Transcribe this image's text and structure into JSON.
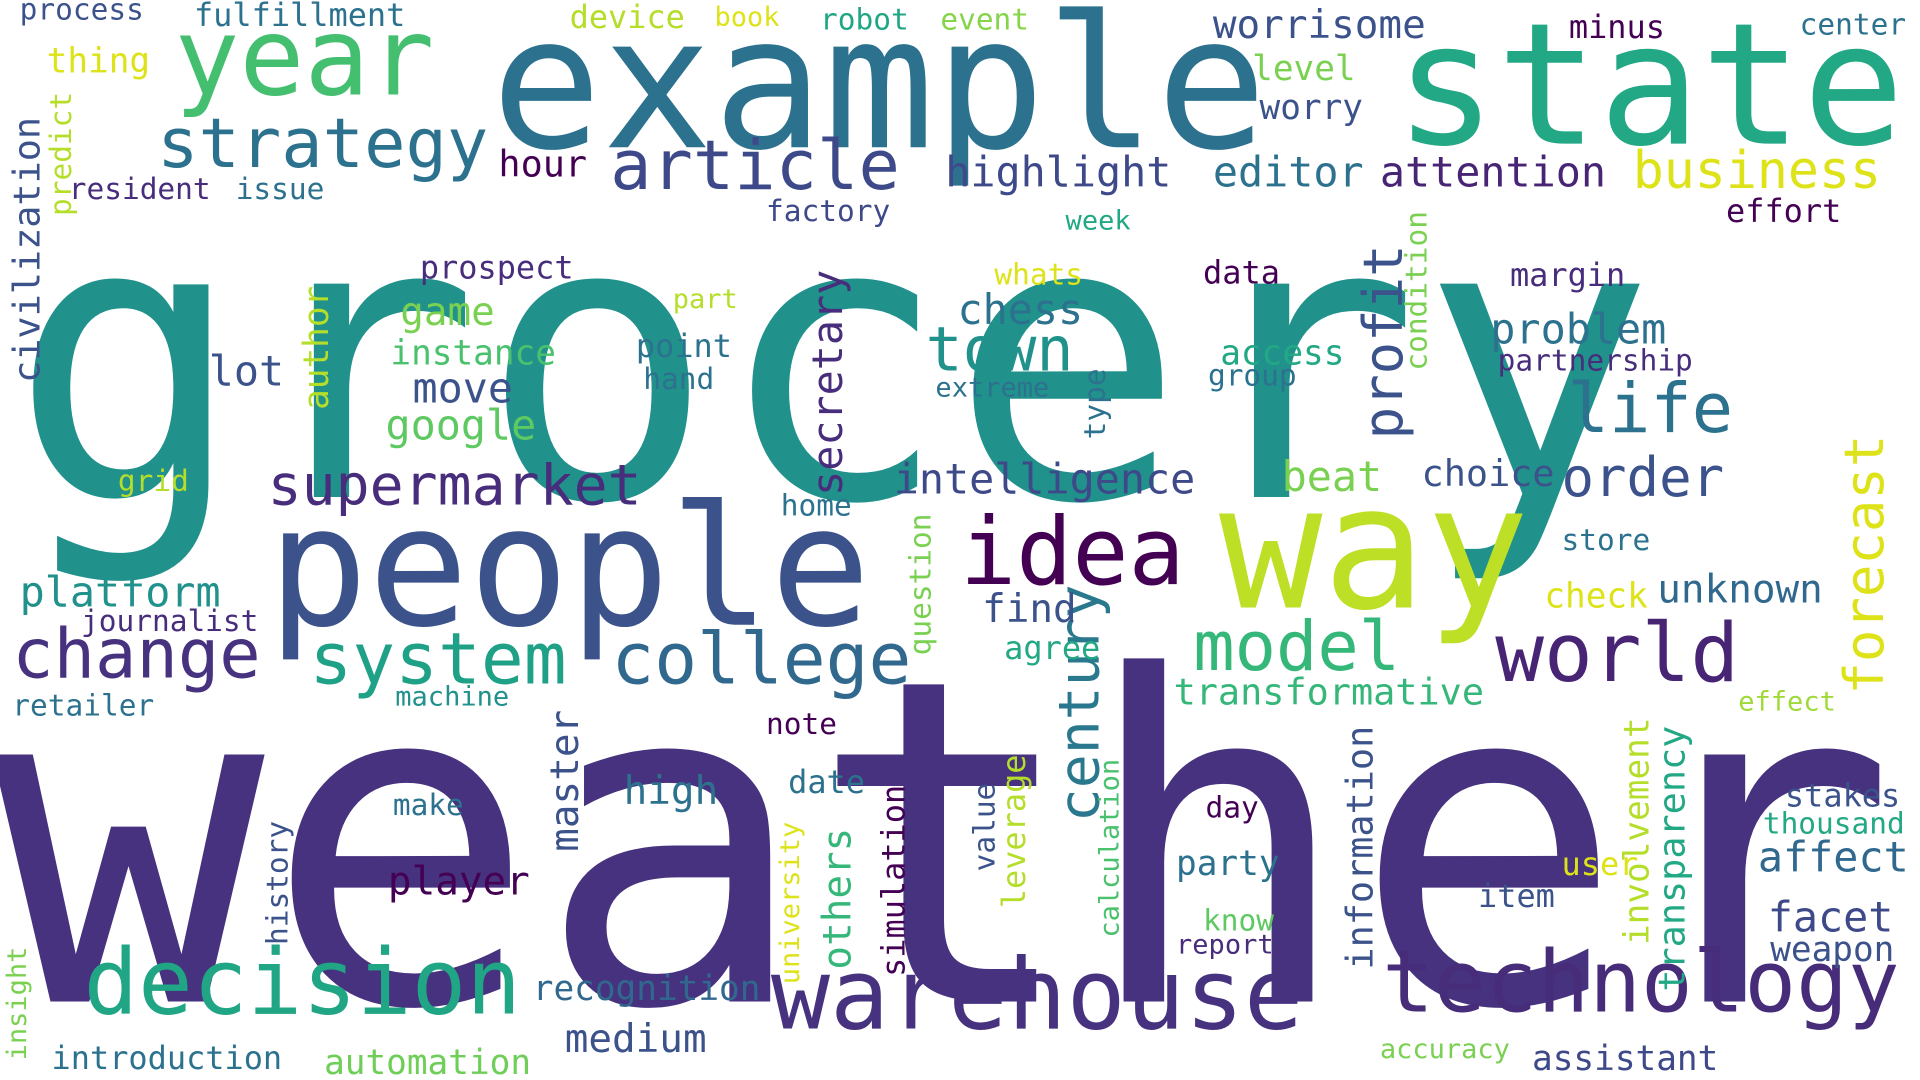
{
  "words": [
    {
      "text": "grocery",
      "color": "#21918c"
    },
    {
      "text": "weather",
      "color": "#46327e"
    },
    {
      "text": "example",
      "color": "#2c728e"
    },
    {
      "text": "state",
      "color": "#22a884"
    },
    {
      "text": "people",
      "color": "#3b528b"
    },
    {
      "text": "way",
      "color": "#bddf26"
    },
    {
      "text": "year",
      "color": "#44bf70"
    },
    {
      "text": "warehouse",
      "color": "#46327e"
    },
    {
      "text": "technology",
      "color": "#472c7a"
    },
    {
      "text": "decision",
      "color": "#21a685"
    },
    {
      "text": "idea",
      "color": "#440154"
    },
    {
      "text": "world",
      "color": "#482475"
    },
    {
      "text": "college",
      "color": "#31688e"
    },
    {
      "text": "change",
      "color": "#46327e"
    },
    {
      "text": "system",
      "color": "#1fa187"
    },
    {
      "text": "model",
      "color": "#35b779"
    },
    {
      "text": "strategy",
      "color": "#2c728e"
    },
    {
      "text": "article",
      "color": "#3e4989"
    },
    {
      "text": "business",
      "color": "#dde318"
    },
    {
      "text": "life",
      "color": "#2c728e"
    },
    {
      "text": "supermarket",
      "color": "#472d7b"
    },
    {
      "text": "town",
      "color": "#21918c"
    },
    {
      "text": "order",
      "color": "#3b528b"
    },
    {
      "text": "century",
      "color": "#2a788e"
    },
    {
      "text": "profit",
      "color": "#3b528b"
    },
    {
      "text": "forecast",
      "color": "#dde318"
    },
    {
      "text": "intelligence",
      "color": "#3e4989"
    },
    {
      "text": "highlight",
      "color": "#3e4989"
    },
    {
      "text": "attention",
      "color": "#482475"
    },
    {
      "text": "editor",
      "color": "#2c728e"
    },
    {
      "text": "worrisome",
      "color": "#3b528b"
    },
    {
      "text": "platform",
      "color": "#21918c"
    },
    {
      "text": "secretary",
      "color": "#472d7b"
    },
    {
      "text": "problem",
      "color": "#2c728e"
    },
    {
      "text": "chess",
      "color": "#2c728e"
    },
    {
      "text": "google",
      "color": "#5ec962"
    },
    {
      "text": "game",
      "color": "#7ad151"
    },
    {
      "text": "instance",
      "color": "#4ac16d"
    },
    {
      "text": "move",
      "color": "#3b528b"
    },
    {
      "text": "lot",
      "color": "#3b528b"
    },
    {
      "text": "author",
      "color": "#b5de2b"
    },
    {
      "text": "hour",
      "color": "#440154"
    },
    {
      "text": "find",
      "color": "#3b528b"
    },
    {
      "text": "player",
      "color": "#440154"
    },
    {
      "text": "master",
      "color": "#3b528b"
    },
    {
      "text": "others",
      "color": "#35b779"
    },
    {
      "text": "high",
      "color": "#2c728e"
    },
    {
      "text": "medium",
      "color": "#3b528b"
    },
    {
      "text": "recognition",
      "color": "#31688e"
    },
    {
      "text": "automation",
      "color": "#6ece58"
    },
    {
      "text": "introduction",
      "color": "#2c728e"
    },
    {
      "text": "transformative",
      "color": "#35b779"
    },
    {
      "text": "information",
      "color": "#3b528b"
    },
    {
      "text": "involvement",
      "color": "#b5de2b"
    },
    {
      "text": "transparency",
      "color": "#22a884"
    },
    {
      "text": "affect",
      "color": "#31688e"
    },
    {
      "text": "facet",
      "color": "#3e4989"
    },
    {
      "text": "weapon",
      "color": "#3b528b"
    },
    {
      "text": "assistant",
      "color": "#3e4989"
    },
    {
      "text": "accuracy",
      "color": "#7ad151"
    },
    {
      "text": "beat",
      "color": "#7ad151"
    },
    {
      "text": "choice",
      "color": "#3b528b"
    },
    {
      "text": "unknown",
      "color": "#31688e"
    },
    {
      "text": "check",
      "color": "#dde318"
    },
    {
      "text": "store",
      "color": "#2c728e"
    },
    {
      "text": "stakes",
      "color": "#3b528b"
    },
    {
      "text": "thousand",
      "color": "#22a884"
    },
    {
      "text": "effect",
      "color": "#a0da39"
    },
    {
      "text": "civilization",
      "color": "#3b528b"
    },
    {
      "text": "resident",
      "color": "#472d7b"
    },
    {
      "text": "issue",
      "color": "#2c728e"
    },
    {
      "text": "predict",
      "color": "#b5de2b"
    },
    {
      "text": "thing",
      "color": "#dde318"
    },
    {
      "text": "process",
      "color": "#3b528b"
    },
    {
      "text": "fulfillment",
      "color": "#2c728e"
    },
    {
      "text": "device",
      "color": "#b5de2b"
    },
    {
      "text": "book",
      "color": "#dde318"
    },
    {
      "text": "robot",
      "color": "#21a685"
    },
    {
      "text": "event",
      "color": "#86d549"
    },
    {
      "text": "minus",
      "color": "#440154"
    },
    {
      "text": "center",
      "color": "#2c728e"
    },
    {
      "text": "level",
      "color": "#7ad151"
    },
    {
      "text": "worry",
      "color": "#3b528b"
    },
    {
      "text": "factory",
      "color": "#3e4989"
    },
    {
      "text": "week",
      "color": "#22a884"
    },
    {
      "text": "effort",
      "color": "#440154"
    },
    {
      "text": "prospect",
      "color": "#472d7b"
    },
    {
      "text": "part",
      "color": "#b5de2b"
    },
    {
      "text": "whats",
      "color": "#dde318"
    },
    {
      "text": "data",
      "color": "#440154"
    },
    {
      "text": "margin",
      "color": "#472d7b"
    },
    {
      "text": "condition",
      "color": "#7ad151"
    },
    {
      "text": "point",
      "color": "#2c728e"
    },
    {
      "text": "hand",
      "color": "#2c728e"
    },
    {
      "text": "extreme",
      "color": "#2c728e"
    },
    {
      "text": "type",
      "color": "#2c728e"
    },
    {
      "text": "access",
      "color": "#22a884"
    },
    {
      "text": "group",
      "color": "#2c728e"
    },
    {
      "text": "partnership",
      "color": "#472d7b"
    },
    {
      "text": "grid",
      "color": "#b5de2b"
    },
    {
      "text": "home",
      "color": "#2c728e"
    },
    {
      "text": "question",
      "color": "#7ad151"
    },
    {
      "text": "journalist",
      "color": "#472d7b"
    },
    {
      "text": "retailer",
      "color": "#2c728e"
    },
    {
      "text": "machine",
      "color": "#21918c"
    },
    {
      "text": "agree",
      "color": "#22a884"
    },
    {
      "text": "note",
      "color": "#440154"
    },
    {
      "text": "date",
      "color": "#2c728e"
    },
    {
      "text": "make",
      "color": "#2c728e"
    },
    {
      "text": "history",
      "color": "#3b528b"
    },
    {
      "text": "university",
      "color": "#dde318"
    },
    {
      "text": "simulation",
      "color": "#440154"
    },
    {
      "text": "value",
      "color": "#3b528b"
    },
    {
      "text": "leverage",
      "color": "#b5de2b"
    },
    {
      "text": "calculation",
      "color": "#4ac16d"
    },
    {
      "text": "day",
      "color": "#440154"
    },
    {
      "text": "party",
      "color": "#2c728e"
    },
    {
      "text": "know",
      "color": "#5ec962"
    },
    {
      "text": "report",
      "color": "#472d7b"
    },
    {
      "text": "user",
      "color": "#dde318"
    },
    {
      "text": "item",
      "color": "#3b528b"
    },
    {
      "text": "insight",
      "color": "#7ad151"
    }
  ]
}
